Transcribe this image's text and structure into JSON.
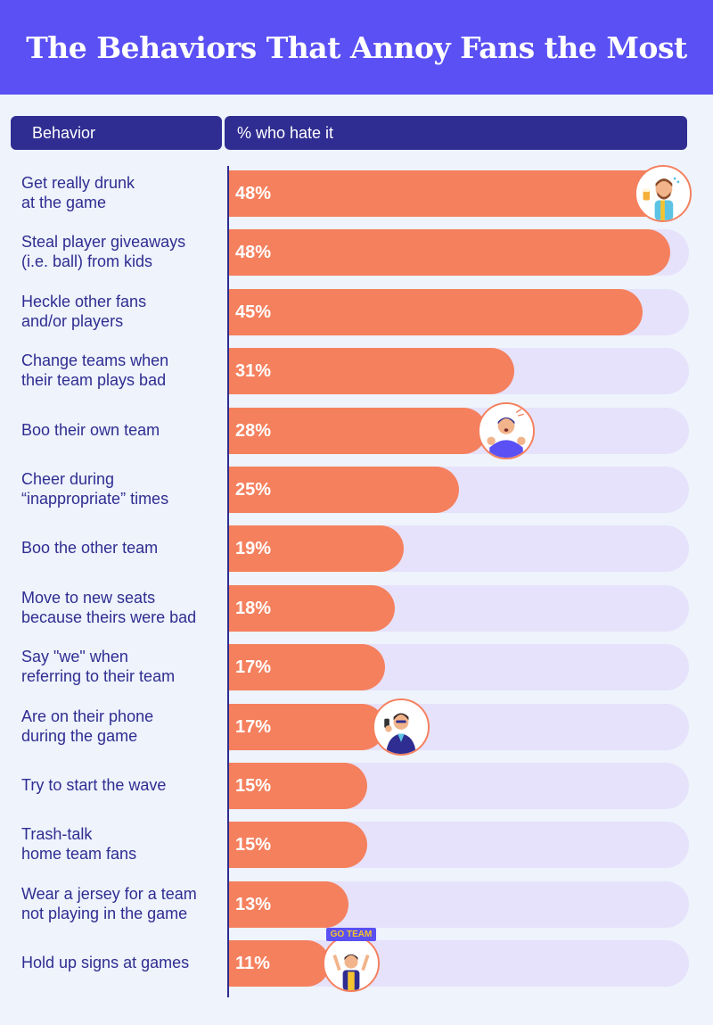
{
  "title": "The Behaviors That Annoy Fans the Most",
  "headers": {
    "behavior": "Behavior",
    "percent": "% who hate it"
  },
  "colors": {
    "title_bg": "#5a50f3",
    "header_bg": "#2f2d91",
    "bar": "#f5805e",
    "track": "#e6e2fb",
    "page_bg": "#eef3fc",
    "label_text": "#2f2d91"
  },
  "chart_data": {
    "type": "bar",
    "orientation": "horizontal",
    "xlim": [
      0,
      50
    ],
    "grid": false,
    "categories": [
      "Get really drunk\nat the game",
      "Steal player giveaways\n(i.e. ball) from kids",
      "Heckle other fans\nand/or players",
      "Change teams when\ntheir team plays bad",
      "Boo their own team",
      "Cheer during\n“inappropriate” times",
      "Boo the other team",
      "Move to new seats\nbecause theirs were bad",
      "Say \"we\" when\nreferring to their team",
      "Are on their phone\nduring the game",
      "Try to start the wave",
      "Trash-talk\nhome team fans",
      "Wear a jersey for a team\nnot playing in the game",
      "Hold up signs at games"
    ],
    "values": [
      48,
      48,
      45,
      31,
      28,
      25,
      19,
      18,
      17,
      17,
      15,
      15,
      13,
      11
    ],
    "value_labels": [
      "48%",
      "48%",
      "45%",
      "31%",
      "28%",
      "25%",
      "19%",
      "18%",
      "17%",
      "17%",
      "15%",
      "15%",
      "13%",
      "11%"
    ]
  },
  "illustrations": [
    {
      "row": 0,
      "icon": "drunk-fan-icon",
      "sign_text": ""
    },
    {
      "row": 4,
      "icon": "booing-fan-icon",
      "sign_text": ""
    },
    {
      "row": 9,
      "icon": "phone-fan-icon",
      "sign_text": ""
    },
    {
      "row": 13,
      "icon": "sign-holding-fan-icon",
      "sign_text": "GO TEAM"
    }
  ]
}
